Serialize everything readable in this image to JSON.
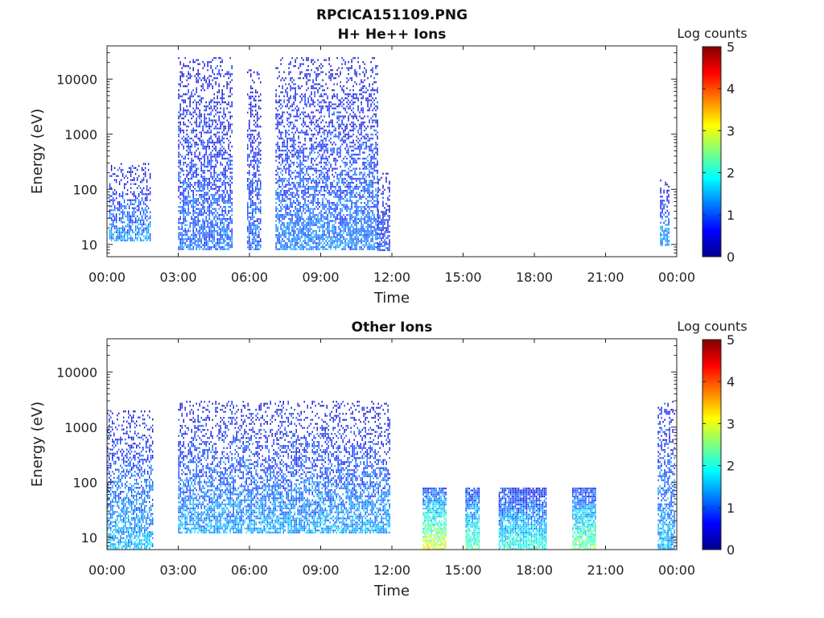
{
  "figure": {
    "title_line1": "RPCICA151109.PNG"
  },
  "chart_data": [
    {
      "type": "heatmap",
      "title": "H+ He++ Ions",
      "xlabel": "Time",
      "ylabel": "Energy (eV)",
      "x_unit": "hours",
      "xlim": [
        0,
        24
      ],
      "ylim": [
        6,
        40000
      ],
      "yscale": "log",
      "x_ticks": [
        {
          "v": 0,
          "label": "00:00"
        },
        {
          "v": 3,
          "label": "03:00"
        },
        {
          "v": 6,
          "label": "06:00"
        },
        {
          "v": 9,
          "label": "09:00"
        },
        {
          "v": 12,
          "label": "12:00"
        },
        {
          "v": 15,
          "label": "15:00"
        },
        {
          "v": 18,
          "label": "18:00"
        },
        {
          "v": 21,
          "label": "21:00"
        },
        {
          "v": 24,
          "label": "00:00"
        }
      ],
      "y_ticks": [
        {
          "v": 10,
          "label": "10"
        },
        {
          "v": 100,
          "label": "100"
        },
        {
          "v": 1000,
          "label": "1000"
        },
        {
          "v": 10000,
          "label": "10000"
        }
      ],
      "colorbar": {
        "label": "Log counts",
        "min": 0,
        "max": 5,
        "ticks": [
          "0",
          "1",
          "2",
          "3",
          "4",
          "5"
        ]
      },
      "grid": false,
      "activity_intervals": [
        {
          "start": 0.1,
          "end": 1.8,
          "e_min": 12,
          "e_max": 300,
          "level": 1.2
        },
        {
          "start": 3.0,
          "end": 5.3,
          "e_min": 8,
          "e_max": 25000,
          "level": 1.0
        },
        {
          "start": 5.9,
          "end": 6.5,
          "e_min": 8,
          "e_max": 15000,
          "level": 1.0
        },
        {
          "start": 7.1,
          "end": 11.4,
          "e_min": 8,
          "e_max": 25000,
          "level": 1.1
        },
        {
          "start": 11.4,
          "end": 11.9,
          "e_min": 8,
          "e_max": 200,
          "level": 0.8
        },
        {
          "start": 23.3,
          "end": 23.7,
          "e_min": 10,
          "e_max": 150,
          "level": 1.3
        }
      ]
    },
    {
      "type": "heatmap",
      "title": "Other Ions",
      "xlabel": "Time",
      "ylabel": "Energy (eV)",
      "x_unit": "hours",
      "xlim": [
        0,
        24
      ],
      "ylim": [
        6,
        40000
      ],
      "yscale": "log",
      "x_ticks": [
        {
          "v": 0,
          "label": "00:00"
        },
        {
          "v": 3,
          "label": "03:00"
        },
        {
          "v": 6,
          "label": "06:00"
        },
        {
          "v": 9,
          "label": "09:00"
        },
        {
          "v": 12,
          "label": "12:00"
        },
        {
          "v": 15,
          "label": "15:00"
        },
        {
          "v": 18,
          "label": "18:00"
        },
        {
          "v": 21,
          "label": "21:00"
        },
        {
          "v": 24,
          "label": "00:00"
        }
      ],
      "y_ticks": [
        {
          "v": 10,
          "label": "10"
        },
        {
          "v": 100,
          "label": "100"
        },
        {
          "v": 1000,
          "label": "1000"
        },
        {
          "v": 10000,
          "label": "10000"
        }
      ],
      "colorbar": {
        "label": "Log counts",
        "min": 0,
        "max": 5,
        "ticks": [
          "0",
          "1",
          "2",
          "3",
          "4",
          "5"
        ]
      },
      "grid": false,
      "activity_intervals": [
        {
          "start": 0.0,
          "end": 1.9,
          "e_min": 6,
          "e_max": 2000,
          "level": 1.4
        },
        {
          "start": 3.0,
          "end": 11.9,
          "e_min": 12,
          "e_max": 3000,
          "level": 1.3
        },
        {
          "start": 13.3,
          "end": 14.3,
          "e_min": 6,
          "e_max": 80,
          "level": 2.7
        },
        {
          "start": 15.1,
          "end": 15.7,
          "e_min": 6,
          "e_max": 80,
          "level": 2.2
        },
        {
          "start": 16.5,
          "end": 18.5,
          "e_min": 6,
          "e_max": 80,
          "level": 1.9
        },
        {
          "start": 19.6,
          "end": 20.6,
          "e_min": 6,
          "e_max": 80,
          "level": 2.3
        },
        {
          "start": 23.2,
          "end": 23.9,
          "e_min": 6,
          "e_max": 3000,
          "level": 1.4
        }
      ]
    }
  ]
}
